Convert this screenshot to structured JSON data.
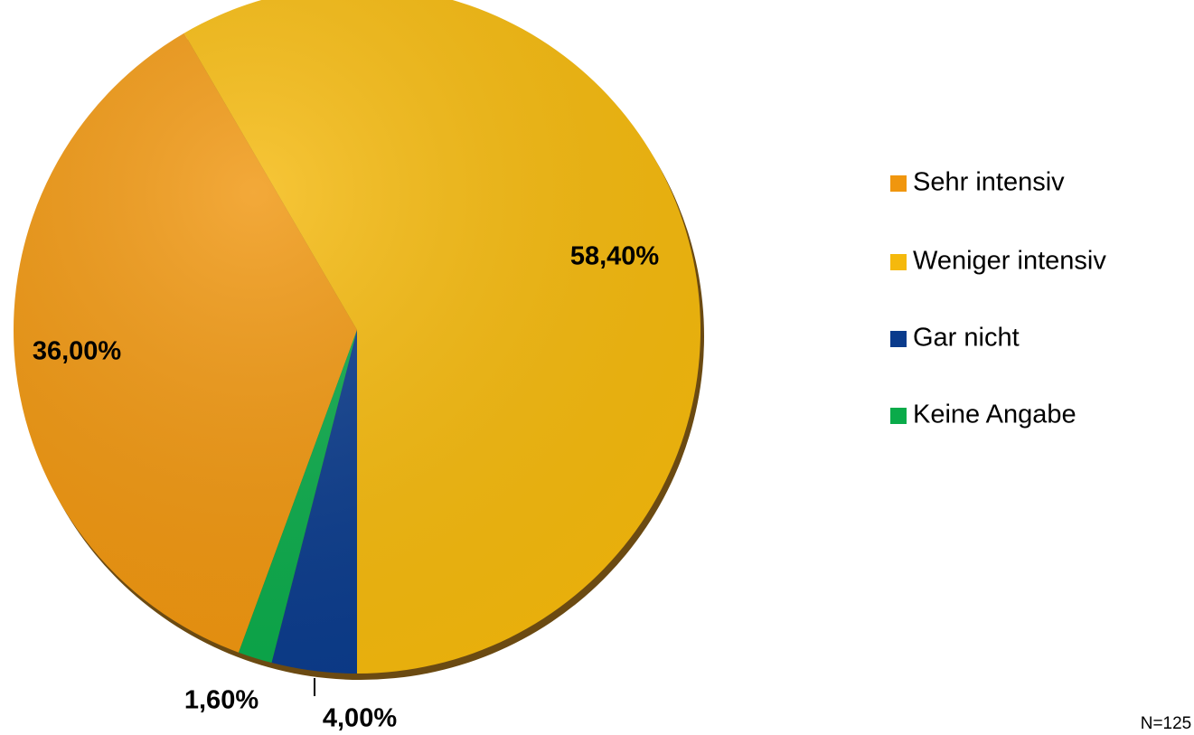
{
  "chart_data": {
    "type": "pie",
    "categories": [
      "Sehr intensiv",
      "Weniger intensiv",
      "Gar nicht",
      "Keine Angabe"
    ],
    "values": [
      36.0,
      58.4,
      4.0,
      1.6
    ],
    "value_labels": [
      "36,00%",
      "58,40%",
      "4,00%",
      "1,60%"
    ],
    "colors": [
      "#f0960e",
      "#f5b90c",
      "#0a3b8c",
      "#0aab4a"
    ],
    "legend": "right",
    "annotation": "N=125"
  }
}
